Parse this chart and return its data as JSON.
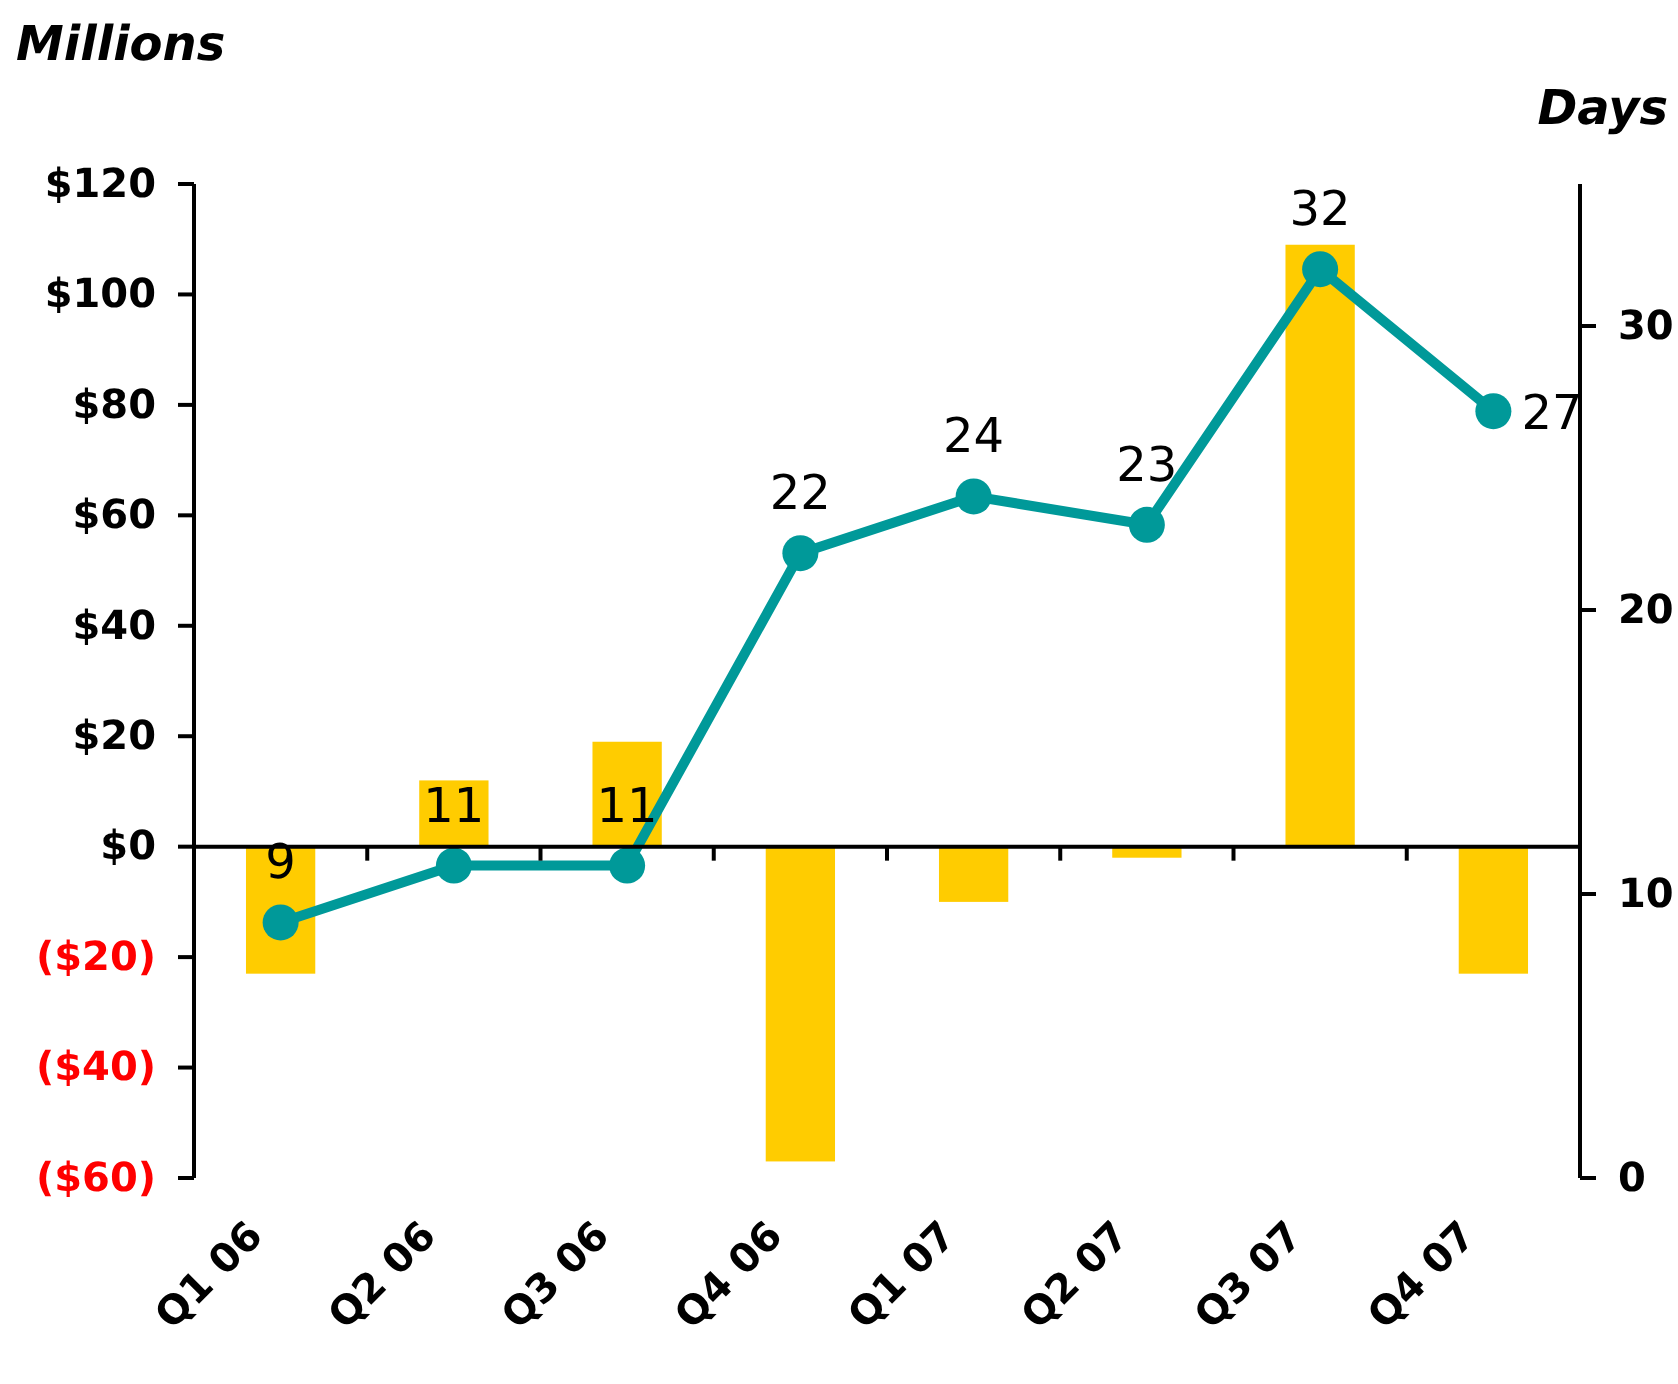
{
  "chart_data": {
    "type": "bar",
    "ylabel": "Millions",
    "y2label": "Days",
    "categories": [
      "Q1 06",
      "Q2 06",
      "Q3 06",
      "Q4 06",
      "Q1 07",
      "Q2 07",
      "Q3 07",
      "Q4 07"
    ],
    "series": [
      {
        "color": "#ffcc00",
        "values": [
          -23,
          12,
          19,
          -57,
          -10,
          -2,
          109,
          -23
        ]
      },
      {
        "type": "line",
        "axis": "y2",
        "color": "#009999",
        "marker": "circle",
        "data_labels": true,
        "values": [
          9,
          11,
          11,
          22,
          24,
          23,
          32,
          27
        ]
      }
    ],
    "ylim": [
      -60,
      120
    ],
    "yticks": [
      {
        "value": -60,
        "label": "($60)"
      },
      {
        "value": -40,
        "label": "($40)"
      },
      {
        "value": -20,
        "label": "($20)"
      },
      {
        "value": 0,
        "label": "$0"
      },
      {
        "value": 20,
        "label": "$20"
      },
      {
        "value": 40,
        "label": "$40"
      },
      {
        "value": 60,
        "label": "$60"
      },
      {
        "value": 80,
        "label": "$80"
      },
      {
        "value": 100,
        "label": "$100"
      },
      {
        "value": 120,
        "label": "$120"
      }
    ],
    "y2lim": [
      0,
      35
    ],
    "y2ticks": [
      0,
      10,
      20,
      30
    ]
  }
}
